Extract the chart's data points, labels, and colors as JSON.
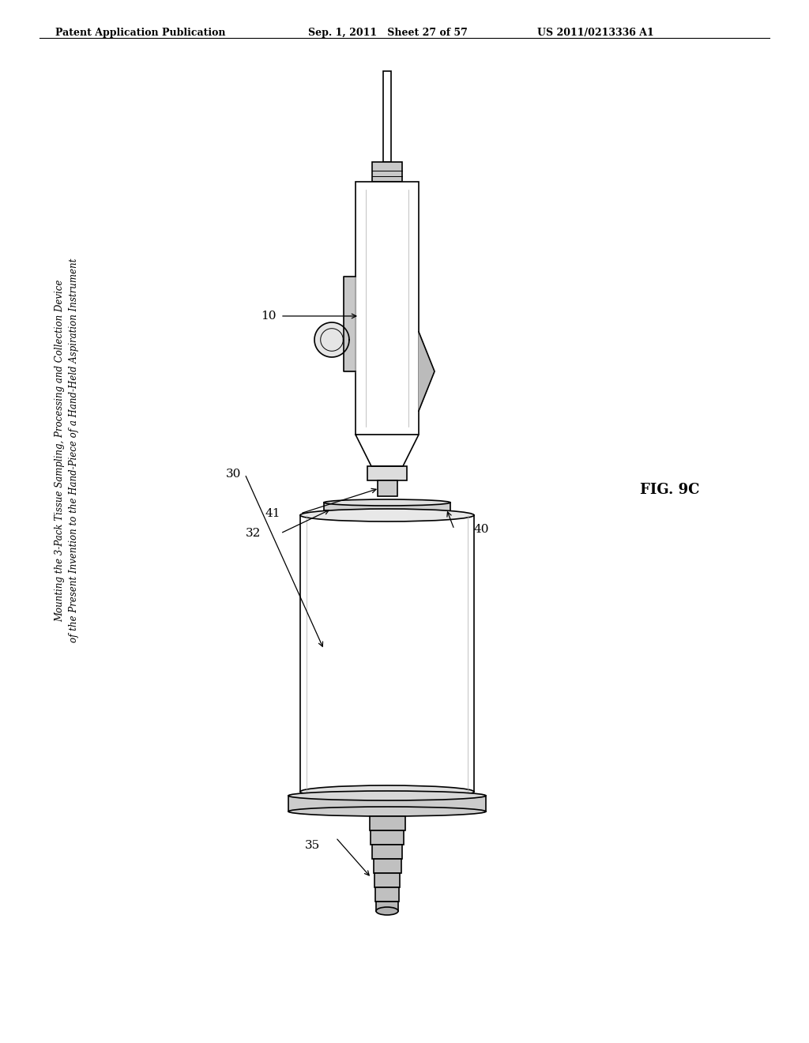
{
  "header_left": "Patent Application Publication",
  "header_mid": "Sep. 1, 2011   Sheet 27 of 57",
  "header_right": "US 2011/0213336 A1",
  "fig_label": "FIG. 9C",
  "rotated_title_line1": "Mounting the 3-Pack Tissue Sampling, Processing and Collection Device",
  "rotated_title_line2": "of the Present Invention to the Hand-Piece of a Hand-Held Aspiration Instrument",
  "ref_numbers": [
    "10",
    "30",
    "32",
    "35",
    "40",
    "41"
  ],
  "bg_color": "#ffffff",
  "line_color": "#000000",
  "gray_fill": "#d0d0d0",
  "light_gray": "#e8e8e8",
  "mid_gray": "#b0b0b0"
}
